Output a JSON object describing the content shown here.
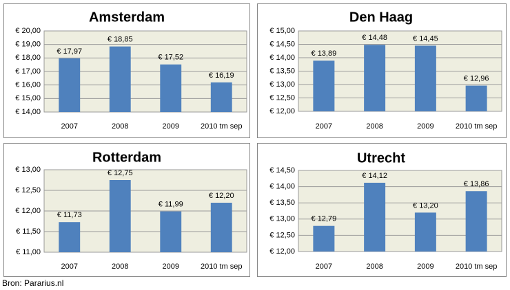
{
  "chart_data": [
    {
      "type": "bar",
      "title": "Amsterdam",
      "categories": [
        "2007",
        "2008",
        "2009",
        "2010 tm sep"
      ],
      "values": [
        17.97,
        18.85,
        17.52,
        16.19
      ],
      "value_labels": [
        "€ 17,97",
        "€ 18,85",
        "€ 17,52",
        "€ 16,19"
      ],
      "color": "#4f81bd",
      "ylim": [
        14,
        20
      ],
      "yticks": [
        {
          "value": 14,
          "label": "€ 14,00"
        },
        {
          "value": 15,
          "label": "€ 15,00"
        },
        {
          "value": 16,
          "label": "€ 16,00"
        },
        {
          "value": 17,
          "label": "€ 17,00"
        },
        {
          "value": 18,
          "label": "€ 18,00"
        },
        {
          "value": 19,
          "label": "€ 19,00"
        },
        {
          "value": 20,
          "label": "€ 20,00"
        }
      ],
      "grid": true
    },
    {
      "type": "bar",
      "title": "Den Haag",
      "categories": [
        "2007",
        "2008",
        "2009",
        "2010 tm sep"
      ],
      "values": [
        13.89,
        14.48,
        14.45,
        12.96
      ],
      "value_labels": [
        "€ 13,89",
        "€ 14,48",
        "€ 14,45",
        "€ 12,96"
      ],
      "color": "#4f81bd",
      "ylim": [
        12,
        15
      ],
      "yticks": [
        {
          "value": 12,
          "label": "€ 12,00"
        },
        {
          "value": 12.5,
          "label": "€ 12,50"
        },
        {
          "value": 13,
          "label": "€ 13,00"
        },
        {
          "value": 13.5,
          "label": "€ 13,50"
        },
        {
          "value": 14,
          "label": "€ 14,00"
        },
        {
          "value": 14.5,
          "label": "€ 14,50"
        },
        {
          "value": 15,
          "label": "€ 15,00"
        }
      ],
      "grid": true
    },
    {
      "type": "bar",
      "title": "Rotterdam",
      "categories": [
        "2007",
        "2008",
        "2009",
        "2010 tm sep"
      ],
      "values": [
        11.73,
        12.75,
        11.99,
        12.2
      ],
      "value_labels": [
        "€ 11,73",
        "€ 12,75",
        "€ 11,99",
        "€ 12,20"
      ],
      "color": "#4f81bd",
      "ylim": [
        11,
        13
      ],
      "yticks": [
        {
          "value": 11,
          "label": "€ 11,00"
        },
        {
          "value": 11.5,
          "label": "€ 11,50"
        },
        {
          "value": 12,
          "label": "€ 12,00"
        },
        {
          "value": 12.5,
          "label": "€ 12,50"
        },
        {
          "value": 13,
          "label": "€ 13,00"
        }
      ],
      "grid": true
    },
    {
      "type": "bar",
      "title": "Utrecht",
      "categories": [
        "2007",
        "2008",
        "2009",
        "2010 tm sep"
      ],
      "values": [
        12.79,
        14.12,
        13.2,
        13.86
      ],
      "value_labels": [
        "€ 12,79",
        "€ 14,12",
        "€ 13,20",
        "€ 13,86"
      ],
      "color": "#4f81bd",
      "ylim": [
        12,
        14.5
      ],
      "yticks": [
        {
          "value": 12,
          "label": "€ 12,00"
        },
        {
          "value": 12.5,
          "label": "€ 12,50"
        },
        {
          "value": 13,
          "label": "€ 13,00"
        },
        {
          "value": 13.5,
          "label": "€ 13,50"
        },
        {
          "value": 14,
          "label": "€ 14,00"
        },
        {
          "value": 14.5,
          "label": "€ 14,50"
        }
      ],
      "grid": true
    }
  ],
  "source": "Bron: Pararius.nl"
}
